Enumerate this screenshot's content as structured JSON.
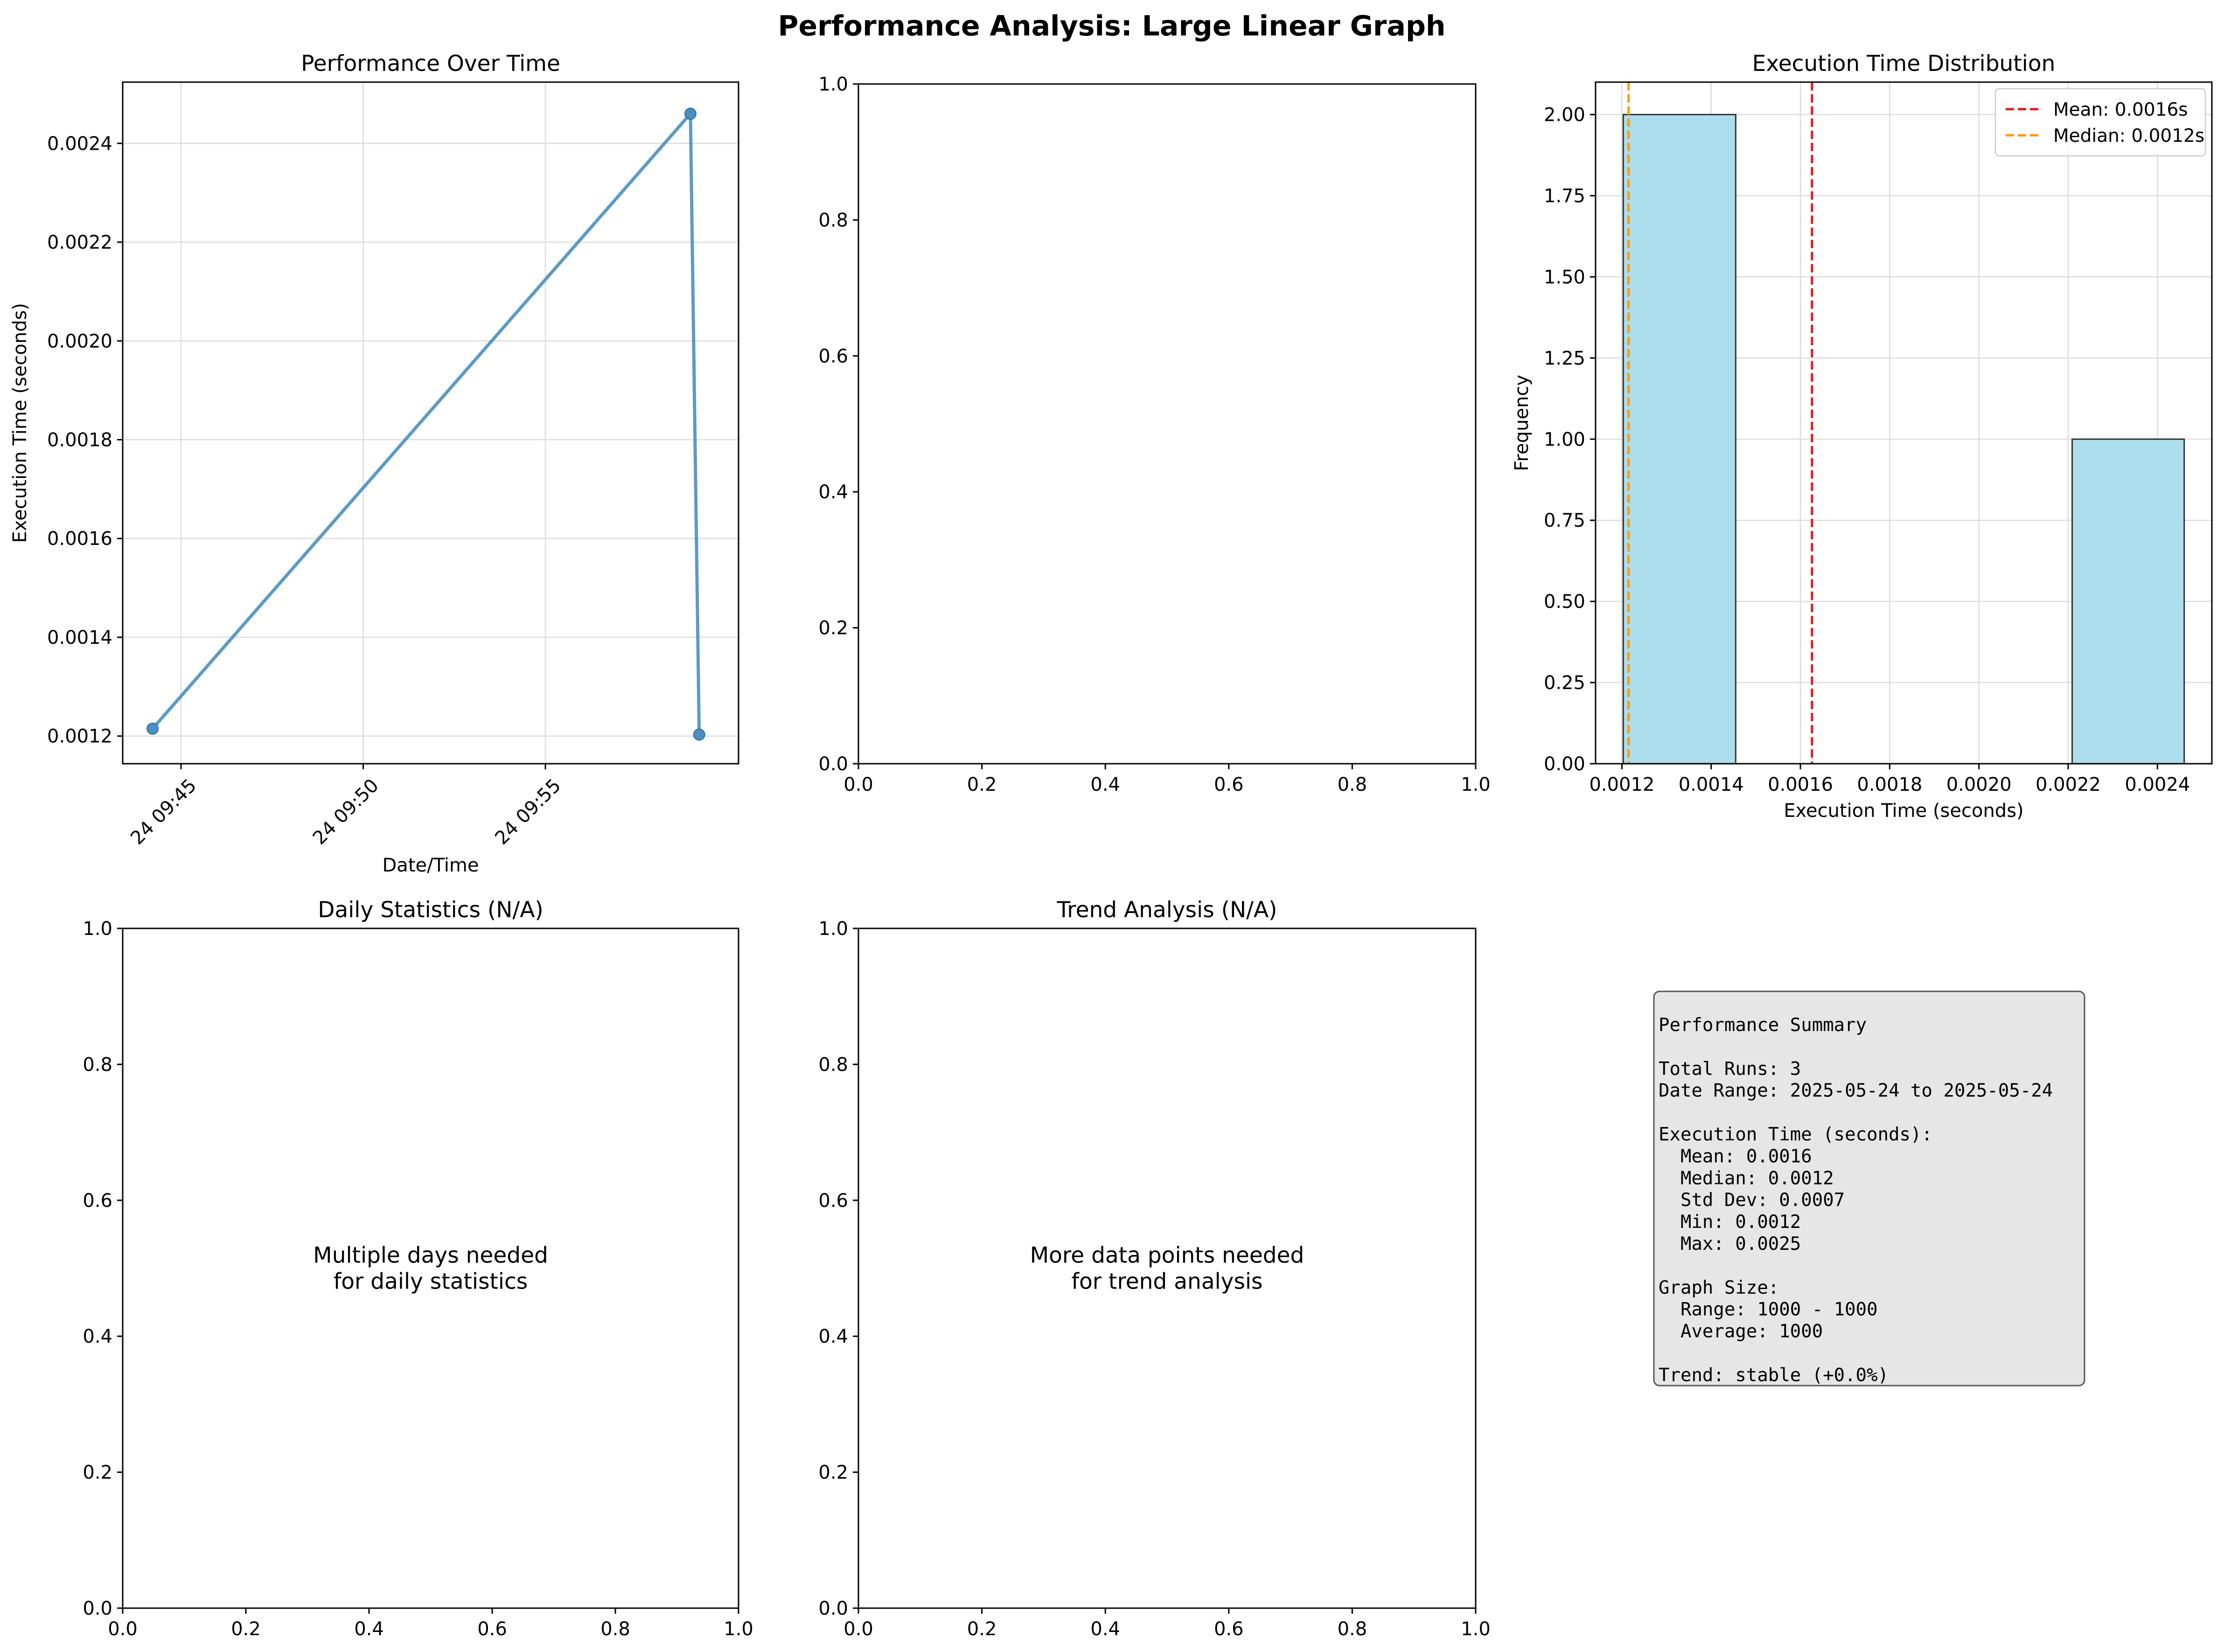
{
  "figure": {
    "suptitle": "Performance Analysis: Large Linear Graph"
  },
  "chart_data": [
    {
      "id": "performance-over-time",
      "type": "line",
      "title": "Performance Over Time",
      "xlabel": "Date/Time",
      "ylabel": "Execution Time (seconds)",
      "x_tick_labels": [
        "24 09:45",
        "24 09:50",
        "24 09:55"
      ],
      "x_tick_minutes": [
        45,
        50,
        55
      ],
      "x_min_minutes": 43.4,
      "x_max_minutes": 60.3,
      "ylim": [
        0.001144,
        0.002524
      ],
      "y_ticks": [
        "0.0012",
        "0.0014",
        "0.0016",
        "0.0018",
        "0.0020",
        "0.0022",
        "0.0024"
      ],
      "grid": true,
      "series": [
        {
          "points": [
            {
              "t": "09:44:13",
              "minutes": 44.22,
              "y": 0.001215
            },
            {
              "t": "09:58:59",
              "minutes": 58.98,
              "y": 0.00246
            },
            {
              "t": "09:59:13",
              "minutes": 59.22,
              "y": 0.001203
            }
          ],
          "color": "#4a8fc0"
        }
      ]
    },
    {
      "id": "empty-axes",
      "type": "line",
      "title": "",
      "xlim": [
        0,
        1
      ],
      "ylim": [
        0,
        1
      ],
      "x_ticks": [
        "0.0",
        "0.2",
        "0.4",
        "0.6",
        "0.8",
        "1.0"
      ],
      "y_ticks": [
        "0.0",
        "0.2",
        "0.4",
        "0.6",
        "0.8",
        "1.0"
      ]
    },
    {
      "id": "execution-time-distribution",
      "type": "bar",
      "title": "Execution Time Distribution",
      "xlabel": "Execution Time (seconds)",
      "ylabel": "Frequency",
      "xlim": [
        0.001141,
        0.002522
      ],
      "ylim": [
        0,
        2.1
      ],
      "x_ticks": [
        "0.0012",
        "0.0014",
        "0.0016",
        "0.0018",
        "0.0020",
        "0.0022",
        "0.0024"
      ],
      "y_ticks": [
        "0.00",
        "0.25",
        "0.50",
        "0.75",
        "1.00",
        "1.25",
        "1.50",
        "1.75",
        "2.00"
      ],
      "grid": true,
      "bins": [
        {
          "start": 0.001203,
          "end": 0.001455,
          "count": 2
        },
        {
          "start": 0.001455,
          "end": 0.001706,
          "count": 0
        },
        {
          "start": 0.001706,
          "end": 0.001957,
          "count": 0
        },
        {
          "start": 0.001957,
          "end": 0.002209,
          "count": 0
        },
        {
          "start": 0.002209,
          "end": 0.00246,
          "count": 1
        }
      ],
      "bar_color": "#a8dcec",
      "lines": [
        {
          "label": "Mean: 0.0016s",
          "value": 0.001626,
          "color": "#e31a1c"
        },
        {
          "label": "Median: 0.0012s",
          "value": 0.001215,
          "color": "#ff9900"
        }
      ],
      "legend": "top-right"
    },
    {
      "id": "daily-statistics",
      "type": "line",
      "title": "Daily Statistics (N/A)",
      "message": "Multiple days needed\nfor daily statistics",
      "xlim": [
        0,
        1
      ],
      "ylim": [
        0,
        1
      ],
      "x_ticks": [
        "0.0",
        "0.2",
        "0.4",
        "0.6",
        "0.8",
        "1.0"
      ],
      "y_ticks": [
        "0.0",
        "0.2",
        "0.4",
        "0.6",
        "0.8",
        "1.0"
      ]
    },
    {
      "id": "trend-analysis",
      "type": "line",
      "title": "Trend Analysis (N/A)",
      "message": "More data points needed\nfor trend analysis",
      "xlim": [
        0,
        1
      ],
      "ylim": [
        0,
        1
      ],
      "x_ticks": [
        "0.0",
        "0.2",
        "0.4",
        "0.6",
        "0.8",
        "1.0"
      ],
      "y_ticks": [
        "0.0",
        "0.2",
        "0.4",
        "0.6",
        "0.8",
        "1.0"
      ]
    }
  ],
  "summary": {
    "lines": [
      "Performance Summary",
      "",
      "Total Runs: 3",
      "Date Range: 2025-05-24 to 2025-05-24",
      "",
      "Execution Time (seconds):",
      "  Mean: 0.0016",
      "  Median: 0.0012",
      "  Std Dev: 0.0007",
      "  Min: 0.0012",
      "  Max: 0.0025",
      "",
      "Graph Size:",
      "  Range: 1000 - 1000",
      "  Average: 1000",
      "",
      "Trend: stable (+0.0%)"
    ]
  }
}
